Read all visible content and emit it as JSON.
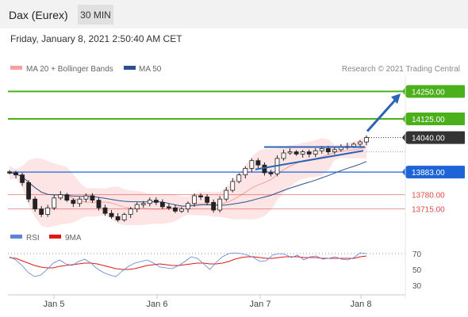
{
  "header": {
    "instrument": "Dax (Eurex)",
    "timeframe": "30 MIN",
    "datetime": "Friday, January 8, 2021 2:50:40 AM CET"
  },
  "legend": {
    "bollinger_label": "MA 20 + Bollinger Bands",
    "ma50_label": "MA 50",
    "credit": "Research © 2021 Trading Central"
  },
  "colors": {
    "resistance": "#4caf1c",
    "support": "#1e64d6",
    "support_light": "#e24a4a",
    "last": "#333333",
    "candle_up": "#ffffff",
    "candle_down": "#222222",
    "bollinger": "#f7a0a0",
    "ma50": "#2d4f8f",
    "arrow": "#2a63b8",
    "rsi": "#5b83d8",
    "rsi_ma": "#e01818"
  },
  "chart_data": [
    {
      "type": "candlestick",
      "title": "Dax (Eurex)",
      "timeframe": "30 MIN",
      "x_ticks": [
        "Jan 5",
        "Jan 6",
        "Jan 7",
        "Jan 8"
      ],
      "ylim": [
        13620,
        14320
      ],
      "levels": [
        {
          "value": 14250.0,
          "label": "14250.00",
          "kind": "resistance"
        },
        {
          "value": 14125.0,
          "label": "14125.00",
          "kind": "resistance"
        },
        {
          "value": 14040.0,
          "label": "14040.00",
          "kind": "last"
        },
        {
          "value": 13883.0,
          "label": "13883.00",
          "kind": "support"
        },
        {
          "value": 13780.0,
          "label": "13780.00",
          "kind": "support_light"
        },
        {
          "value": 13715.0,
          "label": "13715.00",
          "kind": "support_light"
        }
      ],
      "price_path": [
        13880,
        13870,
        13835,
        13760,
        13715,
        13690,
        13720,
        13765,
        13780,
        13755,
        13740,
        13760,
        13775,
        13755,
        13720,
        13695,
        13680,
        13665,
        13690,
        13715,
        13735,
        13740,
        13755,
        13745,
        13725,
        13720,
        13705,
        13715,
        13740,
        13775,
        13770,
        13745,
        13710,
        13760,
        13800,
        13840,
        13870,
        13900,
        13935,
        13915,
        13880,
        13875,
        13945,
        13970,
        13975,
        13965,
        13975,
        13965,
        13980,
        13990,
        13975,
        13985,
        13995,
        14000,
        14010,
        14020,
        14040
      ],
      "series": [
        {
          "name": "MA 20 + Bollinger Bands"
        },
        {
          "name": "MA 50"
        }
      ]
    },
    {
      "type": "line",
      "title": "RSI",
      "ylim": [
        20,
        80
      ],
      "y_ticks": [
        30,
        50,
        70
      ],
      "overbought": 70,
      "series": [
        {
          "name": "RSI",
          "values": [
            66,
            62,
            55,
            46,
            41,
            43,
            50,
            58,
            62,
            57,
            55,
            60,
            63,
            58,
            51,
            46,
            43,
            41,
            48,
            54,
            58,
            60,
            62,
            58,
            53,
            52,
            51,
            55,
            60,
            66,
            64,
            57,
            50,
            59,
            66,
            70,
            71,
            70,
            68,
            65,
            60,
            61,
            68,
            70,
            69,
            65,
            68,
            62,
            66,
            67,
            63,
            64,
            66,
            63,
            62,
            65,
            71,
            70
          ]
        },
        {
          "name": "9MA",
          "values": [
            65,
            64,
            61,
            58,
            55,
            53,
            52,
            52,
            54,
            55,
            56,
            57,
            58,
            58,
            57,
            55,
            53,
            51,
            50,
            50,
            51,
            53,
            55,
            56,
            57,
            56,
            55,
            55,
            56,
            57,
            58,
            58,
            57,
            57,
            58,
            60,
            63,
            65,
            66,
            66,
            65,
            64,
            64,
            65,
            66,
            66,
            66,
            65,
            65,
            65,
            64,
            64,
            64,
            64,
            64,
            64,
            66,
            67
          ]
        }
      ]
    }
  ]
}
